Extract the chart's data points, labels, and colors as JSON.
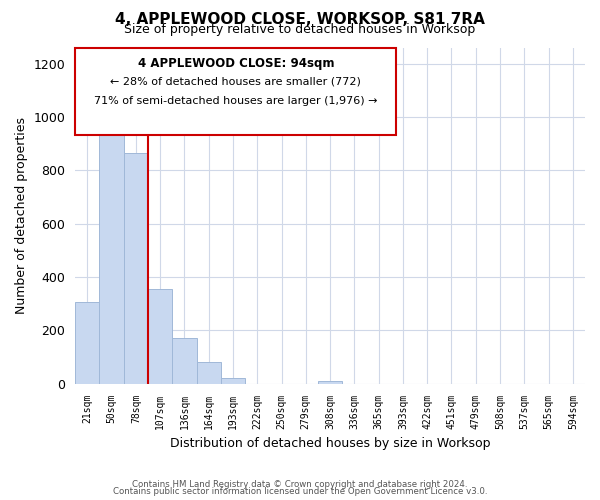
{
  "title": "4, APPLEWOOD CLOSE, WORKSOP, S81 7RA",
  "subtitle": "Size of property relative to detached houses in Worksop",
  "xlabel": "Distribution of detached houses by size in Worksop",
  "ylabel": "Number of detached properties",
  "bin_labels": [
    "21sqm",
    "50sqm",
    "78sqm",
    "107sqm",
    "136sqm",
    "164sqm",
    "193sqm",
    "222sqm",
    "250sqm",
    "279sqm",
    "308sqm",
    "336sqm",
    "365sqm",
    "393sqm",
    "422sqm",
    "451sqm",
    "479sqm",
    "508sqm",
    "537sqm",
    "565sqm",
    "594sqm"
  ],
  "bar_heights": [
    308,
    951,
    864,
    356,
    170,
    80,
    22,
    0,
    0,
    0,
    9,
    0,
    0,
    0,
    0,
    0,
    0,
    0,
    0,
    0,
    0
  ],
  "bar_color": "#c8d8f0",
  "bar_edge_color": "#a0b8d8",
  "vline_color": "#cc0000",
  "vline_x": 2.5,
  "ylim": [
    0,
    1260
  ],
  "yticks": [
    0,
    200,
    400,
    600,
    800,
    1000,
    1200
  ],
  "annotation_title": "4 APPLEWOOD CLOSE: 94sqm",
  "annotation_line1": "← 28% of detached houses are smaller (772)",
  "annotation_line2": "71% of semi-detached houses are larger (1,976) →",
  "footer_line1": "Contains HM Land Registry data © Crown copyright and database right 2024.",
  "footer_line2": "Contains public sector information licensed under the Open Government Licence v3.0.",
  "background_color": "#ffffff",
  "grid_color": "#d0d8e8"
}
